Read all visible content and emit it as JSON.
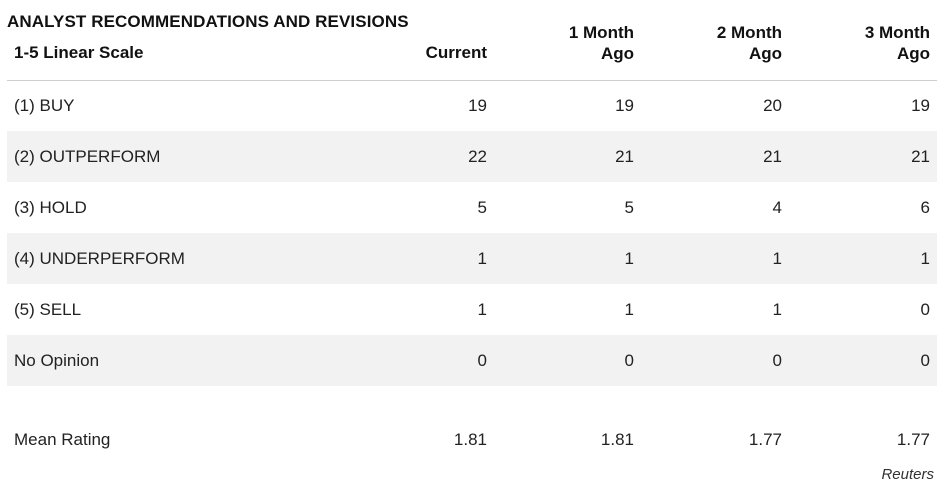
{
  "table": {
    "title": "ANALYST RECOMMENDATIONS AND REVISIONS",
    "header": {
      "label": "1-5 Linear Scale",
      "col1": [
        "Current"
      ],
      "col2": [
        "1 Month",
        "Ago"
      ],
      "col3": [
        "2 Month",
        "Ago"
      ],
      "col4": [
        "3 Month",
        "Ago"
      ]
    },
    "rows": [
      {
        "label": "(1) BUY",
        "values": [
          "19",
          "19",
          "20",
          "19"
        ]
      },
      {
        "label": "(2) OUTPERFORM",
        "values": [
          "22",
          "21",
          "21",
          "21"
        ]
      },
      {
        "label": "(3) HOLD",
        "values": [
          "5",
          "5",
          "4",
          "6"
        ]
      },
      {
        "label": "(4) UNDERPERFORM",
        "values": [
          "1",
          "1",
          "1",
          "1"
        ]
      },
      {
        "label": "(5) SELL",
        "values": [
          "1",
          "1",
          "1",
          "0"
        ]
      },
      {
        "label": "No Opinion",
        "values": [
          "0",
          "0",
          "0",
          "0"
        ]
      }
    ],
    "mean": {
      "label": "Mean Rating",
      "values": [
        "1.81",
        "1.81",
        "1.77",
        "1.77"
      ]
    }
  },
  "credit": "Reuters"
}
